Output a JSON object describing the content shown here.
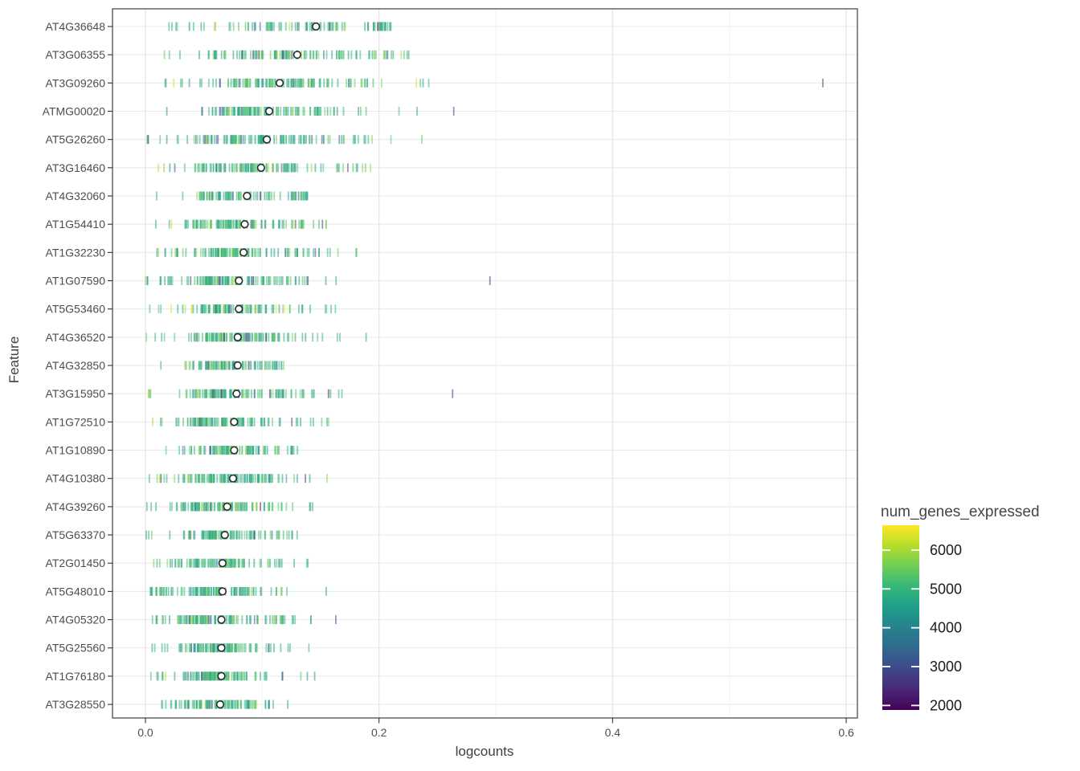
{
  "chart_data": {
    "type": "strip",
    "xlabel": "logcounts",
    "ylabel": "Feature",
    "xlim": [
      -0.0282,
      0.6096
    ],
    "x_ticks": [
      {
        "v": 0.0,
        "label": "0.0"
      },
      {
        "v": 0.2,
        "label": "0.2"
      },
      {
        "v": 0.4,
        "label": "0.4"
      },
      {
        "v": 0.6,
        "label": "0.6"
      }
    ],
    "x_minor_ticks": [
      0.1,
      0.3,
      0.5
    ],
    "legend": {
      "title": "num_genes_expressed",
      "range": [
        1880,
        6640
      ],
      "ticks": [
        {
          "v": 6000,
          "label": "6000"
        },
        {
          "v": 5000,
          "label": "5000"
        },
        {
          "v": 4000,
          "label": "4000"
        },
        {
          "v": 3000,
          "label": "3000"
        },
        {
          "v": 2000,
          "label": "2000"
        }
      ]
    },
    "colors": {
      "viridis": [
        "#440154",
        "#482878",
        "#3e4989",
        "#31688e",
        "#26828e",
        "#1f9e89",
        "#35b779",
        "#6ece58",
        "#b5de2b",
        "#fde725"
      ],
      "background": "#ffffff",
      "panel_border": "#4d4d4d",
      "grid_major": "#e4e4e4",
      "grid_minor": "#f1f1f1",
      "grid_row": "#eaeaea",
      "axis_text": "#4d4d4d",
      "legend_text": "#1a1a1a",
      "median_stroke": "#2b2b2b"
    },
    "genes": [
      {
        "name": "AT4G36648",
        "median": 0.146,
        "min": 0.013,
        "max": 0.211,
        "n": 95
      },
      {
        "name": "AT3G06355",
        "median": 0.13,
        "min": 0.0,
        "max": 0.227,
        "n": 115
      },
      {
        "name": "AT3G09260",
        "median": 0.115,
        "min": 0.016,
        "max": 0.263,
        "n": 120,
        "outliers": [
          {
            "x": 0.58,
            "genes": 2600
          }
        ]
      },
      {
        "name": "ATMG00020",
        "median": 0.106,
        "min": 0.008,
        "max": 0.24,
        "n": 120,
        "outliers": [
          {
            "x": 0.264,
            "genes": 2700
          }
        ]
      },
      {
        "name": "AT5G26260",
        "median": 0.104,
        "min": 0.0,
        "max": 0.241,
        "n": 125
      },
      {
        "name": "AT3G16460",
        "median": 0.099,
        "min": 0.0,
        "max": 0.198,
        "n": 115
      },
      {
        "name": "AT4G32060",
        "median": 0.087,
        "min": 0.0,
        "max": 0.14,
        "n": 90
      },
      {
        "name": "AT1G54410",
        "median": 0.085,
        "min": 0.0,
        "max": 0.155,
        "n": 110
      },
      {
        "name": "AT1G32230",
        "median": 0.084,
        "min": 0.0,
        "max": 0.2,
        "n": 115
      },
      {
        "name": "AT1G07590",
        "median": 0.08,
        "min": 0.0,
        "max": 0.175,
        "n": 120,
        "outliers": [
          {
            "x": 0.295,
            "genes": 2500
          }
        ]
      },
      {
        "name": "AT5G53460",
        "median": 0.08,
        "min": 0.0,
        "max": 0.166,
        "n": 110
      },
      {
        "name": "AT4G36520",
        "median": 0.079,
        "min": 0.0,
        "max": 0.19,
        "n": 120
      },
      {
        "name": "AT4G32850",
        "median": 0.079,
        "min": 0.006,
        "max": 0.12,
        "n": 85
      },
      {
        "name": "AT3G15950",
        "median": 0.078,
        "min": 0.0,
        "max": 0.22,
        "n": 110,
        "outliers": [
          {
            "x": 0.263,
            "genes": 2600
          }
        ]
      },
      {
        "name": "AT1G72510",
        "median": 0.076,
        "min": 0.0,
        "max": 0.157,
        "n": 100
      },
      {
        "name": "AT1G10890",
        "median": 0.076,
        "min": 0.015,
        "max": 0.133,
        "n": 90
      },
      {
        "name": "AT4G10380",
        "median": 0.075,
        "min": 0.0,
        "max": 0.185,
        "n": 115
      },
      {
        "name": "AT4G39260",
        "median": 0.07,
        "min": 0.0,
        "max": 0.185,
        "n": 110
      },
      {
        "name": "AT5G63370",
        "median": 0.068,
        "min": 0.0,
        "max": 0.13,
        "n": 95
      },
      {
        "name": "AT2G01450",
        "median": 0.066,
        "min": 0.005,
        "max": 0.145,
        "n": 95
      },
      {
        "name": "AT5G48010",
        "median": 0.066,
        "min": 0.003,
        "max": 0.245,
        "n": 95,
        "left_blob": true
      },
      {
        "name": "AT4G05320",
        "median": 0.065,
        "min": 0.005,
        "max": 0.165,
        "n": 110,
        "outliers": [
          {
            "x": 0.163,
            "genes": 2800
          }
        ]
      },
      {
        "name": "AT5G25560",
        "median": 0.065,
        "min": 0.0,
        "max": 0.14,
        "n": 100
      },
      {
        "name": "AT1G76180",
        "median": 0.065,
        "min": 0.003,
        "max": 0.16,
        "n": 105
      },
      {
        "name": "AT3G28550",
        "median": 0.064,
        "min": 0.0,
        "max": 0.185,
        "n": 100
      }
    ]
  }
}
